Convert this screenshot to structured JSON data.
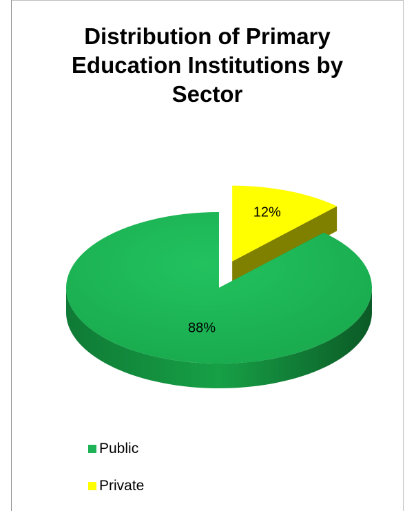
{
  "chart_data": {
    "type": "pie",
    "title_lines": [
      "Distribution of Primary",
      "Education Institutions by",
      "Sector"
    ],
    "slices": [
      {
        "name": "Public",
        "value": 88,
        "label": "88%",
        "color": "#1db356"
      },
      {
        "name": "Private",
        "value": 12,
        "label": "12%",
        "color": "#ffff00"
      }
    ],
    "legend_position": "bottom-left",
    "exploded": "Private",
    "style": "3d"
  }
}
